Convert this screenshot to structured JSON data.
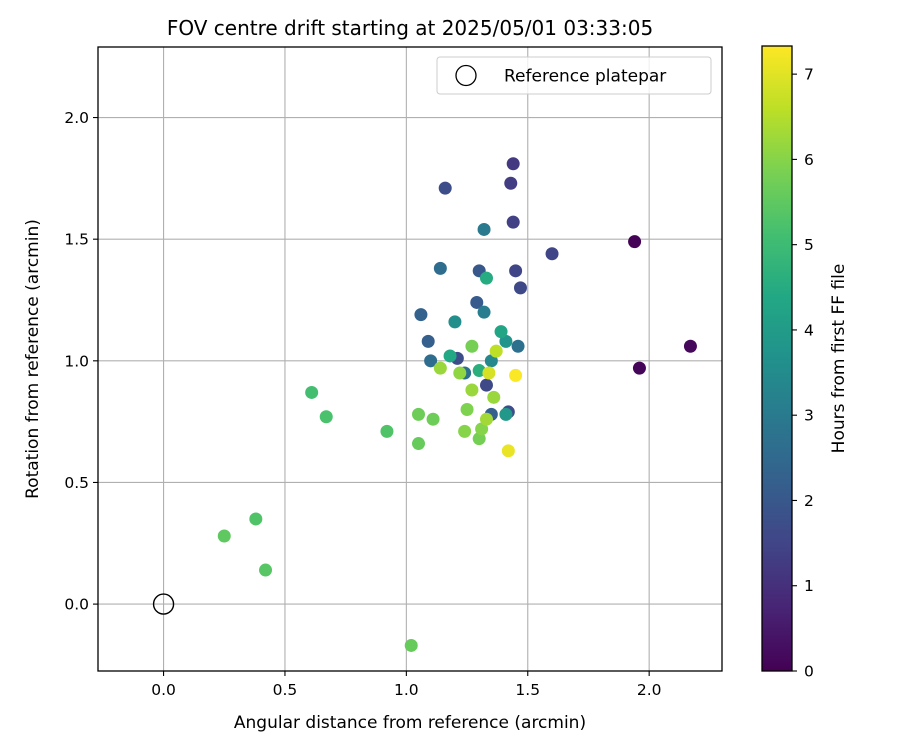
{
  "chart_data": {
    "type": "scatter",
    "title": "FOV centre drift starting at 2025/05/01 03:33:05",
    "xlabel": "Angular distance from reference (arcmin)",
    "ylabel": "Rotation from reference (arcmin)",
    "xlim": [
      -0.27,
      2.3
    ],
    "ylim": [
      -0.275,
      2.29
    ],
    "xticks": [
      0.0,
      0.5,
      1.0,
      1.5,
      2.0
    ],
    "xtick_labels": [
      "0.0",
      "0.5",
      "1.0",
      "1.5",
      "2.0"
    ],
    "yticks": [
      0.0,
      0.5,
      1.0,
      1.5,
      2.0
    ],
    "ytick_labels": [
      "0.0",
      "0.5",
      "1.0",
      "1.5",
      "2.0"
    ],
    "grid": true,
    "legend": {
      "placement": "top-right",
      "entries": [
        "Reference platepar"
      ]
    },
    "reference_point": {
      "x": 0.0,
      "y": 0.0,
      "label": "Reference platepar"
    },
    "colorbar": {
      "label": "Hours from first FF file",
      "range": [
        0,
        7.33
      ],
      "ticks": [
        0,
        1,
        2,
        3,
        4,
        5,
        6,
        7
      ],
      "tick_labels": [
        "0",
        "1",
        "2",
        "3",
        "4",
        "5",
        "6",
        "7"
      ],
      "colormap": "viridis"
    },
    "points": [
      {
        "x": 1.94,
        "y": 1.49,
        "hours": 0.05
      },
      {
        "x": 1.96,
        "y": 0.97,
        "hours": 0.1
      },
      {
        "x": 2.17,
        "y": 1.06,
        "hours": 0.15
      },
      {
        "x": 1.44,
        "y": 1.81,
        "hours": 1.2
      },
      {
        "x": 1.43,
        "y": 1.73,
        "hours": 1.3
      },
      {
        "x": 1.44,
        "y": 1.57,
        "hours": 1.4
      },
      {
        "x": 1.6,
        "y": 1.44,
        "hours": 1.5
      },
      {
        "x": 1.45,
        "y": 1.37,
        "hours": 1.5
      },
      {
        "x": 1.47,
        "y": 1.3,
        "hours": 1.6
      },
      {
        "x": 1.16,
        "y": 1.71,
        "hours": 1.7
      },
      {
        "x": 1.33,
        "y": 0.9,
        "hours": 1.6
      },
      {
        "x": 1.42,
        "y": 0.79,
        "hours": 1.7
      },
      {
        "x": 1.21,
        "y": 1.01,
        "hours": 1.7
      },
      {
        "x": 1.3,
        "y": 1.37,
        "hours": 2.0
      },
      {
        "x": 1.29,
        "y": 1.24,
        "hours": 2.1
      },
      {
        "x": 1.09,
        "y": 1.08,
        "hours": 2.2
      },
      {
        "x": 1.06,
        "y": 1.19,
        "hours": 2.3
      },
      {
        "x": 1.35,
        "y": 0.78,
        "hours": 2.2
      },
      {
        "x": 1.14,
        "y": 1.38,
        "hours": 2.6
      },
      {
        "x": 1.1,
        "y": 1.0,
        "hours": 2.6
      },
      {
        "x": 1.46,
        "y": 1.06,
        "hours": 2.7
      },
      {
        "x": 1.24,
        "y": 0.95,
        "hours": 2.7
      },
      {
        "x": 1.32,
        "y": 1.54,
        "hours": 3.0
      },
      {
        "x": 1.32,
        "y": 1.2,
        "hours": 3.1
      },
      {
        "x": 1.35,
        "y": 1.0,
        "hours": 3.4
      },
      {
        "x": 1.2,
        "y": 1.16,
        "hours": 3.6
      },
      {
        "x": 1.41,
        "y": 1.08,
        "hours": 3.8
      },
      {
        "x": 1.41,
        "y": 0.78,
        "hours": 3.9
      },
      {
        "x": 1.39,
        "y": 1.12,
        "hours": 4.3
      },
      {
        "x": 1.33,
        "y": 1.34,
        "hours": 4.5
      },
      {
        "x": 1.18,
        "y": 1.02,
        "hours": 4.4
      },
      {
        "x": 1.3,
        "y": 0.96,
        "hours": 4.6
      },
      {
        "x": 0.61,
        "y": 0.87,
        "hours": 5.1
      },
      {
        "x": 0.67,
        "y": 0.77,
        "hours": 5.2
      },
      {
        "x": 0.92,
        "y": 0.71,
        "hours": 5.3
      },
      {
        "x": 0.38,
        "y": 0.35,
        "hours": 5.3
      },
      {
        "x": 0.42,
        "y": 0.14,
        "hours": 5.4
      },
      {
        "x": 0.25,
        "y": 0.28,
        "hours": 5.5
      },
      {
        "x": 1.02,
        "y": -0.17,
        "hours": 5.6
      },
      {
        "x": 1.05,
        "y": 0.66,
        "hours": 5.6
      },
      {
        "x": 1.11,
        "y": 0.76,
        "hours": 5.7
      },
      {
        "x": 1.05,
        "y": 0.78,
        "hours": 5.7
      },
      {
        "x": 1.27,
        "y": 1.06,
        "hours": 5.8
      },
      {
        "x": 1.3,
        "y": 0.68,
        "hours": 5.8
      },
      {
        "x": 1.25,
        "y": 0.8,
        "hours": 5.9
      },
      {
        "x": 1.24,
        "y": 0.71,
        "hours": 6.0
      },
      {
        "x": 1.31,
        "y": 0.72,
        "hours": 6.0
      },
      {
        "x": 1.22,
        "y": 0.95,
        "hours": 6.1
      },
      {
        "x": 1.27,
        "y": 0.88,
        "hours": 6.2
      },
      {
        "x": 1.36,
        "y": 0.85,
        "hours": 6.2
      },
      {
        "x": 1.14,
        "y": 0.97,
        "hours": 6.2
      },
      {
        "x": 1.33,
        "y": 0.76,
        "hours": 6.3
      },
      {
        "x": 1.37,
        "y": 1.04,
        "hours": 6.6
      },
      {
        "x": 1.34,
        "y": 0.95,
        "hours": 6.9
      },
      {
        "x": 1.42,
        "y": 0.63,
        "hours": 7.1
      },
      {
        "x": 1.45,
        "y": 0.94,
        "hours": 7.3
      }
    ]
  }
}
